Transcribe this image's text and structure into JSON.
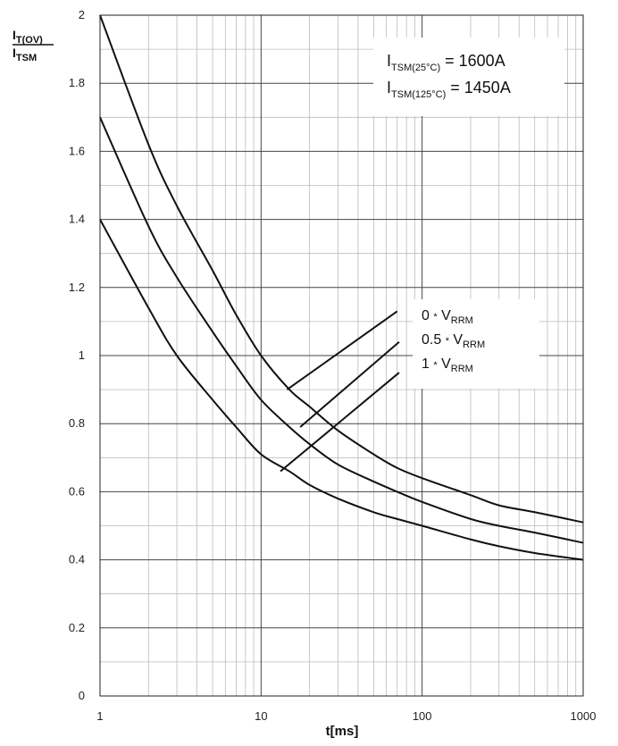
{
  "chart_data": {
    "type": "line",
    "xscale": "log",
    "xlim": [
      1,
      1000
    ],
    "ylim": [
      0,
      2
    ],
    "grid": true,
    "xlabel": "t[ms]",
    "ylabel": {
      "num_main": "I",
      "num_sub": "T(OV)",
      "den_main": "I",
      "den_sub": "TSM"
    },
    "x_ticks": [
      "1",
      "10",
      "100",
      "1000"
    ],
    "y_ticks": [
      "0",
      "0.2",
      "0.4",
      "0.6",
      "0.8",
      "1",
      "1.2",
      "1.4",
      "1.6",
      "1.8",
      "2"
    ],
    "annotations": [
      {
        "main": "I",
        "sub": "TSM(25°C)",
        "text": " = 1600A"
      },
      {
        "main": "I",
        "sub": "TSM(125°C)",
        "text": " = 1450A"
      }
    ],
    "series": [
      {
        "name": "0 * VRRM",
        "label_a": "0 ",
        "label_b": "*",
        "label_c": " V",
        "label_sub": "RRM",
        "x": [
          1,
          2,
          3,
          5,
          7,
          10,
          15,
          20,
          30,
          50,
          70,
          100,
          200,
          300,
          500,
          1000
        ],
        "y": [
          2.0,
          1.62,
          1.44,
          1.25,
          1.12,
          1.0,
          0.9,
          0.85,
          0.78,
          0.71,
          0.67,
          0.64,
          0.59,
          0.56,
          0.54,
          0.51
        ]
      },
      {
        "name": "0.5 * VRRM",
        "label_a": "0.5 ",
        "label_b": "*",
        "label_c": " V",
        "label_sub": "RRM",
        "x": [
          1,
          2,
          3,
          5,
          7,
          10,
          15,
          20,
          30,
          50,
          70,
          100,
          200,
          300,
          500,
          1000
        ],
        "y": [
          1.7,
          1.38,
          1.23,
          1.07,
          0.97,
          0.87,
          0.79,
          0.74,
          0.68,
          0.63,
          0.6,
          0.57,
          0.52,
          0.5,
          0.48,
          0.45
        ]
      },
      {
        "name": "1 * VRRM",
        "label_a": "1 ",
        "label_b": "*",
        "label_c": " V",
        "label_sub": "RRM",
        "x": [
          1,
          2,
          3,
          5,
          7,
          10,
          15,
          20,
          30,
          50,
          70,
          100,
          200,
          300,
          500,
          1000
        ],
        "y": [
          1.4,
          1.14,
          1.0,
          0.87,
          0.79,
          0.71,
          0.66,
          0.62,
          0.58,
          0.54,
          0.52,
          0.5,
          0.46,
          0.44,
          0.42,
          0.4
        ]
      }
    ],
    "colors": {
      "line": "#111111",
      "grid_major": "#444444",
      "grid_minor": "#bbbbbb"
    }
  }
}
